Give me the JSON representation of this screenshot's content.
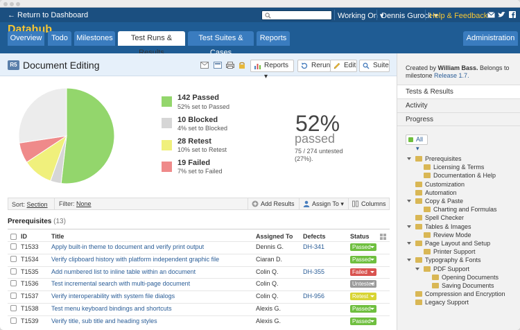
{
  "header": {
    "back_label": "← Return to Dashboard",
    "search_placeholder": "",
    "menus": {
      "working_on": "Working On",
      "user": "Dennis Gurock",
      "help": "Help & Feedback"
    },
    "project": "Datahub"
  },
  "tabs": [
    {
      "label": "Overview"
    },
    {
      "label": "Todo"
    },
    {
      "label": "Milestones"
    },
    {
      "label": "Test Runs & Results",
      "active": true
    },
    {
      "label": "Test Suites & Cases"
    },
    {
      "label": "Reports"
    }
  ],
  "admin_label": "Administration",
  "page": {
    "badge": "R5",
    "title": "Document Editing",
    "buttons": {
      "reports": "Reports",
      "rerun": "Rerun",
      "edit": "Edit",
      "suite": "Suite"
    }
  },
  "stats": {
    "items": [
      {
        "title": "142 Passed",
        "sub": "52% set to Passed",
        "color": "#93d66c",
        "value": 142
      },
      {
        "title": "10 Blocked",
        "sub": "4% set to Blocked",
        "color": "#d6d6d6",
        "value": 10
      },
      {
        "title": "28 Retest",
        "sub": "10% set to Retest",
        "color": "#f0f07c",
        "value": 28
      },
      {
        "title": "19 Failed",
        "sub": "7% set to Failed",
        "color": "#ef8a8a",
        "value": 19
      }
    ],
    "untested_value": 75,
    "untested_color": "#ececec",
    "percent": "52%",
    "percent_label": "passed",
    "untested_text": "75 / 274 untested (27%)."
  },
  "filter": {
    "sort_label": "Sort:",
    "sort_value": "Section",
    "filter_label": "Filter:",
    "filter_value": "None",
    "add_results": "Add Results",
    "assign_to": "Assign To",
    "columns": "Columns"
  },
  "section": {
    "title": "Prerequisites",
    "count": "(13)"
  },
  "table": {
    "headers": {
      "id": "ID",
      "title": "Title",
      "assigned": "Assigned To",
      "defects": "Defects",
      "status": "Status"
    },
    "rows": [
      {
        "id": "T1533",
        "title": "Apply built-in theme to document and verify print output",
        "assigned": "Dennis G.",
        "defect": "DH-341",
        "status": "Passed",
        "color": "#6fbf3f"
      },
      {
        "id": "T1534",
        "title": "Verify clipboard history with platform independent graphic file",
        "assigned": "Ciaran D.",
        "defect": "",
        "status": "Passed",
        "color": "#6fbf3f"
      },
      {
        "id": "T1535",
        "title": "Add numbered list to inline table within an document",
        "assigned": "Colin Q.",
        "defect": "DH-355",
        "status": "Failed",
        "color": "#d9534f"
      },
      {
        "id": "T1536",
        "title": "Test incremental search with multi-page document",
        "assigned": "Colin Q.",
        "defect": "",
        "status": "Untested",
        "color": "#9a9a9a"
      },
      {
        "id": "T1537",
        "title": "Verify interoperability with system file dialogs",
        "assigned": "Colin Q.",
        "defect": "DH-956",
        "status": "Retest",
        "color": "#d8d433"
      },
      {
        "id": "T1538",
        "title": "Test menu keyboard bindings and shortcuts",
        "assigned": "Alexis G.",
        "defect": "",
        "status": "Passed",
        "color": "#6fbf3f"
      },
      {
        "id": "T1539",
        "title": "Verify title, sub title and heading styles",
        "assigned": "Alexis G.",
        "defect": "",
        "status": "Passed",
        "color": "#6fbf3f"
      }
    ]
  },
  "sidebar": {
    "created_prefix": "Created by ",
    "created_by": "William Bass.",
    "belongs": " Belongs to milestone ",
    "milestone": "Release 1.7.",
    "tabs": [
      "Tests & Results",
      "Activity",
      "Progress"
    ],
    "all_label": "All",
    "tree": [
      {
        "label": "Prerequisites",
        "level": 0,
        "open": true
      },
      {
        "label": "Licensing & Terms",
        "level": 1
      },
      {
        "label": "Documentation & Help",
        "level": 1
      },
      {
        "label": "Customization",
        "level": 0
      },
      {
        "label": "Automation",
        "level": 0
      },
      {
        "label": "Copy & Paste",
        "level": 0,
        "open": true
      },
      {
        "label": "Charting and Formulas",
        "level": 1
      },
      {
        "label": "Spell Checker",
        "level": 0
      },
      {
        "label": "Tables & Images",
        "level": 0,
        "open": true
      },
      {
        "label": "Review Mode",
        "level": 1
      },
      {
        "label": "Page Layout and Setup",
        "level": 0,
        "open": true
      },
      {
        "label": "Printer Support",
        "level": 1
      },
      {
        "label": "Typography & Fonts",
        "level": 0,
        "open": true
      },
      {
        "label": "PDF Support",
        "level": 1,
        "open": true
      },
      {
        "label": "Opening Documents",
        "level": 2
      },
      {
        "label": "Saving Documents",
        "level": 2
      },
      {
        "label": "Compression and Encryption",
        "level": 0
      },
      {
        "label": "Legacy Support",
        "level": 0
      }
    ]
  }
}
